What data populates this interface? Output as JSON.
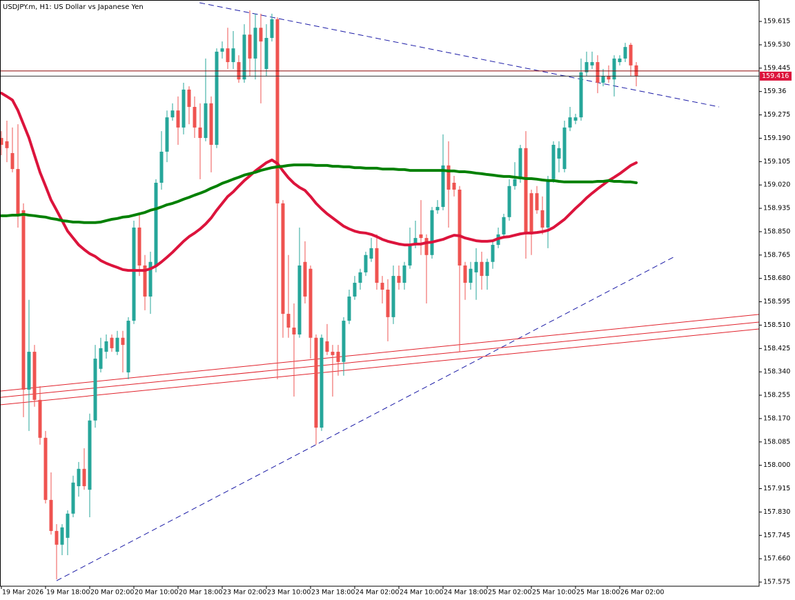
{
  "chart_data": {
    "type": "candlestick",
    "title": "USDJPY.m, H1:  US Dollar vs Japanese Yen",
    "categories": [
      "19 Mar 2026",
      null,
      null,
      null,
      null,
      null,
      null,
      null,
      "19 Mar 18:00",
      null,
      null,
      null,
      null,
      null,
      null,
      null,
      "20 Mar 02:00",
      null,
      null,
      null,
      null,
      null,
      null,
      null,
      "20 Mar 10:00",
      null,
      null,
      null,
      null,
      null,
      null,
      null,
      "20 Mar 18:00",
      null,
      null,
      null,
      null,
      null,
      null,
      null,
      "23 Mar 02:00",
      null,
      null,
      null,
      null,
      null,
      null,
      null,
      "23 Mar 10:00",
      null,
      null,
      null,
      null,
      null,
      null,
      null,
      "23 Mar 18:00",
      null,
      null,
      null,
      null,
      null,
      null,
      null,
      "24 Mar 02:00",
      null,
      null,
      null,
      null,
      null,
      null,
      null,
      "24 Mar 10:00",
      null,
      null,
      null,
      null,
      null,
      null,
      null,
      "24 Mar 18:00",
      null,
      null,
      null,
      null,
      null,
      null,
      null,
      "25 Mar 02:00",
      null,
      null,
      null,
      null,
      null,
      null,
      null,
      "25 Mar 10:00",
      null,
      null,
      null,
      null,
      null,
      null,
      null,
      "25 Mar 18:00",
      null,
      null,
      null,
      null,
      null,
      null,
      null,
      "26 Mar 02:00",
      null,
      null,
      null
    ],
    "open": [
      159.191,
      159.179,
      159.136,
      159.078,
      158.928,
      158.275,
      158.413,
      158.238,
      158.1,
      157.874,
      157.761,
      157.711,
      157.736,
      157.824,
      157.924,
      157.987,
      157.911,
      158.163,
      158.351,
      158.413,
      158.464,
      158.413,
      158.464,
      158.338,
      158.526,
      158.865,
      158.727,
      158.614,
      158.727,
      159.028,
      159.141,
      159.266,
      159.291,
      159.229,
      159.367,
      159.304,
      159.229,
      159.191,
      159.317,
      159.166,
      159.505,
      159.517,
      159.467,
      159.467,
      159.404,
      159.567,
      159.48,
      159.592,
      159.442,
      159.555,
      159.623,
      158.953,
      158.551,
      158.501,
      158.476,
      158.74,
      158.715,
      158.464,
      158.137,
      158.451,
      158.413,
      158.413,
      158.376,
      158.526,
      158.614,
      158.664,
      158.702,
      158.752,
      158.79,
      158.664,
      158.639,
      158.539,
      158.689,
      158.664,
      158.727,
      158.802,
      158.84,
      158.827,
      158.765,
      158.928,
      158.94,
      159.091,
      159.028,
      159.003,
      158.727,
      158.664,
      158.702,
      158.74,
      158.689,
      158.74,
      158.802,
      158.84,
      158.903,
      159.016,
      159.041,
      159.154,
      158.99,
      158.99,
      158.928,
      158.865,
      159.041,
      159.116,
      159.078,
      159.229,
      159.254,
      159.266,
      159.43,
      159.455,
      159.467,
      159.392,
      159.417,
      159.404,
      159.467,
      159.48,
      159.53,
      159.455
    ],
    "high": [
      159.216,
      159.254,
      159.229,
      159.241,
      158.953,
      158.602,
      158.438,
      158.288,
      158.125,
      157.974,
      157.786,
      157.786,
      157.836,
      157.962,
      158.012,
      158.062,
      158.188,
      158.438,
      158.464,
      158.476,
      158.476,
      158.489,
      158.489,
      158.539,
      158.89,
      158.915,
      158.765,
      158.777,
      159.041,
      159.216,
      159.291,
      159.317,
      159.342,
      159.392,
      159.379,
      159.342,
      159.317,
      159.48,
      159.342,
      159.517,
      159.542,
      159.592,
      159.58,
      159.492,
      159.605,
      159.655,
      159.643,
      159.643,
      159.605,
      159.643,
      159.63,
      158.965,
      158.765,
      158.589,
      158.865,
      158.815,
      158.727,
      158.476,
      158.476,
      158.514,
      158.438,
      158.438,
      158.539,
      158.639,
      158.689,
      158.715,
      158.777,
      158.827,
      158.84,
      158.689,
      158.677,
      158.727,
      158.727,
      158.74,
      158.865,
      158.89,
      158.965,
      158.84,
      158.94,
      158.965,
      159.204,
      159.179,
      159.053,
      159.016,
      158.74,
      158.74,
      158.79,
      158.777,
      158.752,
      158.815,
      158.865,
      158.915,
      159.041,
      159.103,
      159.166,
      159.216,
      159.003,
      159.016,
      158.978,
      159.053,
      159.179,
      159.179,
      159.254,
      159.304,
      159.279,
      159.48,
      159.505,
      159.505,
      159.492,
      159.442,
      159.455,
      159.492,
      159.492,
      159.537,
      159.537,
      159.467
    ],
    "low": [
      159.128,
      159.103,
      159.066,
      158.865,
      158.175,
      158.125,
      158.213,
      158.075,
      157.861,
      157.748,
      157.585,
      157.673,
      157.673,
      157.811,
      157.886,
      157.911,
      157.811,
      158.137,
      158.338,
      158.388,
      158.413,
      158.401,
      158.338,
      158.313,
      158.514,
      158.689,
      158.564,
      158.551,
      158.702,
      159.003,
      159.103,
      159.254,
      159.166,
      159.204,
      159.241,
      159.191,
      159.041,
      159.179,
      159.066,
      159.154,
      159.48,
      159.442,
      159.442,
      159.392,
      159.392,
      159.417,
      159.404,
      159.317,
      159.417,
      159.542,
      158.313,
      158.464,
      158.464,
      158.25,
      158.464,
      158.589,
      158.388,
      158.075,
      158.125,
      158.401,
      158.25,
      158.326,
      158.326,
      158.514,
      158.602,
      158.639,
      158.689,
      158.74,
      158.639,
      158.589,
      158.451,
      158.514,
      158.639,
      158.639,
      158.715,
      158.79,
      158.765,
      158.589,
      158.752,
      158.915,
      158.928,
      158.865,
      158.978,
      158.413,
      158.602,
      158.639,
      158.602,
      158.639,
      158.639,
      158.715,
      158.79,
      158.827,
      158.89,
      159.003,
      159.028,
      158.752,
      158.765,
      158.915,
      158.84,
      158.79,
      159.028,
      159.066,
      159.066,
      159.216,
      159.241,
      159.254,
      159.417,
      159.442,
      159.354,
      159.379,
      159.392,
      159.342,
      159.455,
      159.467,
      159.417,
      159.379
    ],
    "close": [
      159.166,
      159.154,
      159.078,
      158.915,
      158.275,
      158.413,
      158.238,
      158.1,
      157.874,
      157.761,
      157.711,
      157.774,
      157.824,
      157.937,
      157.987,
      157.924,
      158.163,
      158.388,
      158.426,
      158.451,
      158.426,
      158.464,
      158.438,
      158.526,
      158.865,
      158.727,
      158.614,
      158.74,
      159.028,
      159.141,
      159.266,
      159.291,
      159.229,
      159.367,
      159.304,
      159.229,
      159.191,
      159.317,
      159.166,
      159.505,
      159.517,
      159.467,
      159.517,
      159.404,
      159.567,
      159.48,
      159.592,
      159.542,
      159.555,
      159.623,
      158.953,
      158.551,
      158.501,
      158.476,
      158.727,
      158.614,
      158.464,
      158.137,
      158.464,
      158.413,
      158.401,
      158.376,
      158.526,
      158.614,
      158.664,
      158.702,
      158.765,
      158.79,
      158.664,
      158.639,
      158.539,
      158.689,
      158.664,
      158.727,
      158.802,
      158.827,
      158.827,
      158.765,
      158.928,
      158.94,
      159.091,
      159.003,
      159.003,
      158.727,
      158.664,
      158.715,
      158.74,
      158.689,
      158.74,
      158.802,
      158.84,
      158.903,
      159.016,
      159.041,
      159.154,
      158.84,
      158.84,
      158.928,
      158.865,
      159.041,
      159.166,
      159.154,
      159.229,
      159.266,
      159.266,
      159.43,
      159.467,
      159.467,
      159.392,
      159.417,
      159.404,
      159.48,
      159.48,
      159.522,
      159.455,
      159.416
    ],
    "up_color": "#26a69a",
    "down_color": "#ef5350",
    "overlays": [
      {
        "color": "#dc143c",
        "values": [
          159.354,
          159.342,
          159.329,
          159.291,
          159.241,
          159.191,
          159.128,
          159.066,
          159.016,
          158.965,
          158.928,
          158.89,
          158.852,
          158.827,
          158.802,
          158.785,
          158.77,
          158.76,
          158.745,
          158.735,
          158.727,
          158.72,
          158.712,
          158.709,
          158.709,
          158.709,
          158.709,
          158.715,
          158.725,
          158.74,
          158.757,
          158.775,
          158.795,
          158.815,
          158.832,
          158.845,
          158.86,
          158.878,
          158.9,
          158.928,
          158.953,
          158.978,
          158.995,
          159.016,
          159.036,
          159.053,
          159.071,
          159.086,
          159.101,
          159.111,
          159.098,
          159.071,
          159.046,
          159.026,
          159.011,
          159.0,
          158.978,
          158.953,
          158.933,
          158.915,
          158.9,
          158.885,
          158.87,
          158.86,
          158.852,
          158.847,
          158.845,
          158.84,
          158.832,
          158.822,
          158.815,
          158.81,
          158.805,
          158.802,
          158.802,
          158.805,
          158.805,
          158.81,
          158.812,
          158.817,
          158.822,
          158.83,
          158.837,
          158.835,
          158.827,
          158.822,
          158.817,
          158.815,
          158.815,
          158.817,
          158.825,
          158.83,
          158.832,
          158.837,
          158.842,
          158.845,
          158.845,
          158.847,
          158.85,
          158.855,
          158.865,
          158.88,
          158.895,
          158.915,
          158.935,
          158.953,
          158.973,
          158.99,
          159.006,
          159.021,
          159.036,
          159.048,
          159.061,
          159.076,
          159.091,
          159.101
        ]
      },
      {
        "color": "#008000",
        "values": [
          158.908,
          158.908,
          158.91,
          158.91,
          158.913,
          158.91,
          158.908,
          158.905,
          158.903,
          158.898,
          158.895,
          158.89,
          158.888,
          158.885,
          158.885,
          158.883,
          158.883,
          158.883,
          158.885,
          158.89,
          158.895,
          158.898,
          158.903,
          158.905,
          158.91,
          158.915,
          158.92,
          158.928,
          158.933,
          158.94,
          158.948,
          158.953,
          158.96,
          158.968,
          158.975,
          158.983,
          158.99,
          158.998,
          159.008,
          159.016,
          159.026,
          159.033,
          159.041,
          159.048,
          159.056,
          159.061,
          159.066,
          159.073,
          159.078,
          159.083,
          159.086,
          159.088,
          159.091,
          159.093,
          159.093,
          159.093,
          159.093,
          159.091,
          159.091,
          159.091,
          159.088,
          159.088,
          159.086,
          159.086,
          159.083,
          159.083,
          159.081,
          159.081,
          159.081,
          159.078,
          159.078,
          159.078,
          159.076,
          159.076,
          159.073,
          159.073,
          159.073,
          159.073,
          159.073,
          159.073,
          159.073,
          159.071,
          159.071,
          159.068,
          159.068,
          159.066,
          159.063,
          159.061,
          159.058,
          159.056,
          159.053,
          159.051,
          159.051,
          159.048,
          159.046,
          159.043,
          159.043,
          159.041,
          159.038,
          159.036,
          159.036,
          159.033,
          159.031,
          159.031,
          159.031,
          159.031,
          159.031,
          159.031,
          159.033,
          159.033,
          159.036,
          159.033,
          159.033,
          159.031,
          159.031,
          159.028
        ]
      }
    ],
    "trendlines": [
      {
        "color": "#1a1aa6",
        "dash": true,
        "x": [
          35.9,
          130
        ],
        "y": [
          159.683,
          159.304
        ]
      },
      {
        "color": "#1a1aa6",
        "dash": true,
        "x": [
          10,
          122
        ],
        "y": [
          157.58,
          158.76
        ]
      },
      {
        "color": "#e0202a",
        "dash": false,
        "x": [
          -0.25,
          137.25
        ],
        "y": [
          158.27,
          158.549
        ]
      },
      {
        "color": "#e0202a",
        "dash": false,
        "x": [
          -0.25,
          137.25
        ],
        "y": [
          158.247,
          158.521
        ]
      },
      {
        "color": "#e0202a",
        "dash": false,
        "x": [
          -0.25,
          137.25
        ],
        "y": [
          158.22,
          158.496
        ]
      }
    ],
    "hlines": [
      {
        "value": 159.435,
        "color": "#8b0000"
      }
    ],
    "last_price": 159.416,
    "last_price_color": "#dc143c",
    "ylim": [
      157.56,
      159.693
    ],
    "yticks": [
      159.615,
      {
        "value": 159.53,
        "label": "159.530"
      },
      159.445,
      159.36,
      159.275,
      {
        "value": 159.19,
        "label": "159.190"
      },
      159.105,
      {
        "value": 159.02,
        "label": "159.020"
      },
      158.935,
      {
        "value": 158.85,
        "label": "158.850"
      },
      158.765,
      {
        "value": 158.68,
        "label": "158.680"
      },
      158.595,
      {
        "value": 158.51,
        "label": "158.510"
      },
      158.425,
      {
        "value": 158.34,
        "label": "158.340"
      },
      158.255,
      {
        "value": 158.17,
        "label": "158.170"
      },
      158.085,
      {
        "value": 158,
        "label": "158.000"
      },
      157.915,
      {
        "value": 157.83,
        "label": "157.830"
      },
      157.745,
      {
        "value": 157.66,
        "label": "157.660"
      },
      157.575
    ]
  }
}
